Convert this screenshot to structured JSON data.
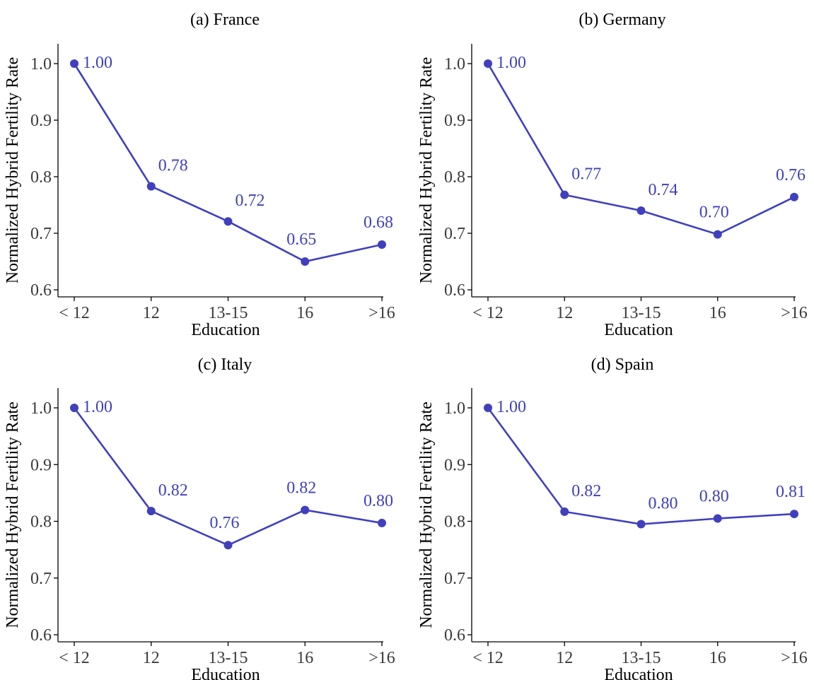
{
  "colors": {
    "series": "#4040bf",
    "axis": "#000000",
    "tick_text": "#3a3a3a"
  },
  "chart_data": [
    {
      "type": "line",
      "title": "(a) France",
      "xlabel": "Education",
      "ylabel": "Normalized Hybrid Fertility Rate",
      "categories": [
        "< 12",
        "12",
        "13-15",
        "16",
        ">16"
      ],
      "series": [
        {
          "values": [
            1.0,
            0.783,
            0.721,
            0.65,
            0.68
          ],
          "labels": [
            "1.00",
            "0.78",
            "0.72",
            "0.65",
            "0.68"
          ]
        }
      ],
      "ylim": [
        0.6,
        1.0
      ],
      "yticks": [
        "0.6",
        "0.7",
        "0.8",
        "0.9",
        "1.0"
      ],
      "grid": false
    },
    {
      "type": "line",
      "title": "(b) Germany",
      "xlabel": "Education",
      "ylabel": "Normalized Hybrid Fertility Rate",
      "categories": [
        "< 12",
        "12",
        "13-15",
        "16",
        ">16"
      ],
      "series": [
        {
          "values": [
            1.0,
            0.768,
            0.74,
            0.698,
            0.764
          ],
          "labels": [
            "1.00",
            "0.77",
            "0.74",
            "0.70",
            "0.76"
          ]
        }
      ],
      "ylim": [
        0.6,
        1.0
      ],
      "yticks": [
        "0.6",
        "0.7",
        "0.8",
        "0.9",
        "1.0"
      ],
      "grid": false
    },
    {
      "type": "line",
      "title": "(c) Italy",
      "xlabel": "Education",
      "ylabel": "Normalized Hybrid Fertility Rate",
      "categories": [
        "< 12",
        "12",
        "13-15",
        "16",
        ">16"
      ],
      "series": [
        {
          "values": [
            1.0,
            0.818,
            0.758,
            0.82,
            0.797
          ],
          "labels": [
            "1.00",
            "0.82",
            "0.76",
            "0.82",
            "0.80"
          ]
        }
      ],
      "ylim": [
        0.6,
        1.0
      ],
      "yticks": [
        "0.6",
        "0.7",
        "0.8",
        "0.9",
        "1.0"
      ],
      "grid": false
    },
    {
      "type": "line",
      "title": "(d) Spain",
      "xlabel": "Education",
      "ylabel": "Normalized Hybrid Fertility Rate",
      "categories": [
        "< 12",
        "12",
        "13-15",
        "16",
        ">16"
      ],
      "series": [
        {
          "values": [
            1.0,
            0.817,
            0.795,
            0.805,
            0.813
          ],
          "labels": [
            "1.00",
            "0.82",
            "0.80",
            "0.80",
            "0.81"
          ]
        }
      ],
      "ylim": [
        0.6,
        1.0
      ],
      "yticks": [
        "0.6",
        "0.7",
        "0.8",
        "0.9",
        "1.0"
      ],
      "grid": false
    }
  ]
}
